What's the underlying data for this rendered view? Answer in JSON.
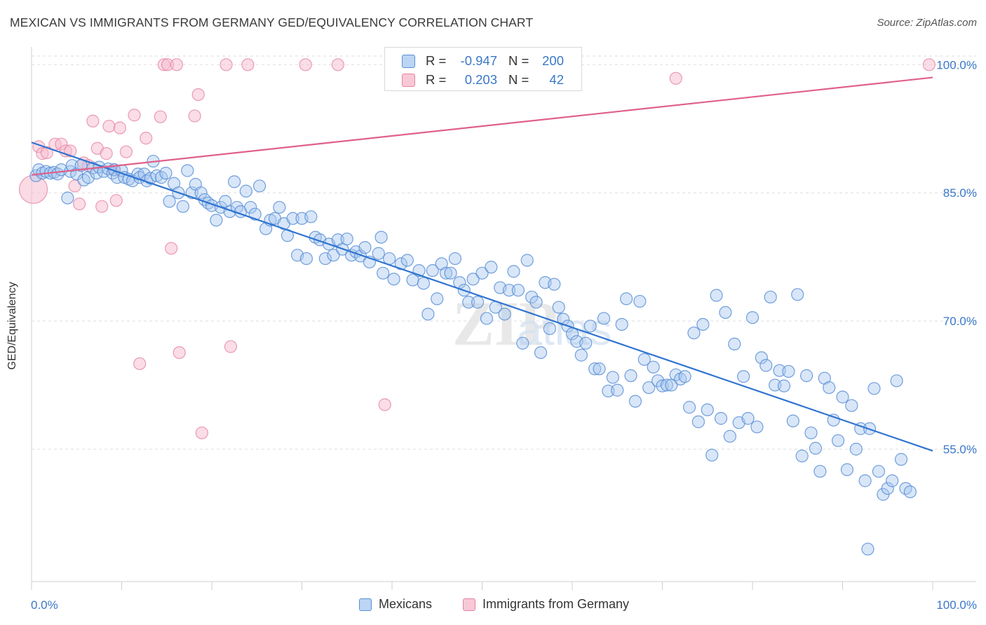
{
  "header": {
    "title": "MEXICAN VS IMMIGRANTS FROM GERMANY GED/EQUIVALENCY CORRELATION CHART",
    "source": "Source: ZipAtlas.com"
  },
  "legend_box": {
    "rows": [
      {
        "r_label": "R =",
        "r_value": "-0.947",
        "n_label": "N =",
        "n_value": "200"
      },
      {
        "r_label": "R =",
        "r_value": "0.203",
        "n_label": "N =",
        "n_value": "42"
      }
    ]
  },
  "bottom_legend": {
    "mexicans": "Mexicans",
    "germany": "Immigrants from Germany"
  },
  "colors": {
    "blue_fill": "#a9c8f0",
    "blue_stroke": "#5a8fd6",
    "blue_line": "#2f74d0",
    "pink_fill": "#f5bccd",
    "pink_stroke": "#e684a4",
    "pink_line": "#e0608a",
    "axis_text": "#3a78c9",
    "grid": "#dedede"
  },
  "chart_data": {
    "type": "scatter",
    "title": "MEXICAN VS IMMIGRANTS FROM GERMANY GED/EQUIVALENCY CORRELATION CHART",
    "xlabel": "",
    "ylabel": "GED/Equivalency",
    "xlim": [
      0,
      100
    ],
    "ylim": [
      39.5,
      101.5
    ],
    "x_tick_labels": [
      "0.0%",
      "100.0%"
    ],
    "y_ticks": [
      55,
      70,
      85,
      100
    ],
    "y_tick_labels": [
      "55.0%",
      "70.0%",
      "85.0%",
      "100.0%"
    ],
    "grid": true,
    "watermark": "ZIPatlas",
    "series": [
      {
        "name": "Mexicans",
        "trendline": [
          [
            0,
            90.9
          ],
          [
            100,
            54.8
          ]
        ],
        "points": [
          [
            0.5,
            87
          ],
          [
            0.8,
            87.7
          ],
          [
            1.2,
            87.3
          ],
          [
            1.6,
            87.5
          ],
          [
            2.1,
            87.3
          ],
          [
            2.5,
            87.4
          ],
          [
            2.9,
            87.2
          ],
          [
            3.3,
            87.7
          ],
          [
            4,
            84.4
          ],
          [
            4.3,
            87.5
          ],
          [
            4.5,
            88.2
          ],
          [
            5,
            87.2
          ],
          [
            5.5,
            88.2
          ],
          [
            5.8,
            86.5
          ],
          [
            6.3,
            86.8
          ],
          [
            6.8,
            87.9
          ],
          [
            7.2,
            87.3
          ],
          [
            7.5,
            88
          ],
          [
            8,
            87.5
          ],
          [
            8.5,
            87.8
          ],
          [
            9,
            87.3
          ],
          [
            9.2,
            87.7
          ],
          [
            9.5,
            86.8
          ],
          [
            10,
            87.6
          ],
          [
            10.3,
            86.8
          ],
          [
            10.8,
            86.6
          ],
          [
            11.2,
            86.4
          ],
          [
            11.8,
            87.2
          ],
          [
            12,
            86.8
          ],
          [
            12.5,
            87.2
          ],
          [
            12.8,
            86.4
          ],
          [
            13.2,
            86.7
          ],
          [
            13.5,
            88.7
          ],
          [
            13.9,
            87
          ],
          [
            14.4,
            86.8
          ],
          [
            14.9,
            87.3
          ],
          [
            15.3,
            84
          ],
          [
            15.8,
            86.1
          ],
          [
            16.3,
            85
          ],
          [
            16.8,
            83.4
          ],
          [
            17.3,
            87.6
          ],
          [
            17.8,
            85
          ],
          [
            18.2,
            86
          ],
          [
            18.8,
            85
          ],
          [
            19.2,
            84.2
          ],
          [
            19.6,
            83.8
          ],
          [
            20,
            83.5
          ],
          [
            20.5,
            81.8
          ],
          [
            21,
            83.3
          ],
          [
            21.5,
            84
          ],
          [
            22,
            82.8
          ],
          [
            22.5,
            86.3
          ],
          [
            22.8,
            83.3
          ],
          [
            23.2,
            82.8
          ],
          [
            23.8,
            85.2
          ],
          [
            24.3,
            83.3
          ],
          [
            24.8,
            82.5
          ],
          [
            25.3,
            85.8
          ],
          [
            26,
            80.8
          ],
          [
            26.5,
            81.8
          ],
          [
            27,
            82
          ],
          [
            27.5,
            83.3
          ],
          [
            28,
            81.4
          ],
          [
            28.4,
            80
          ],
          [
            29,
            82
          ],
          [
            29.5,
            77.7
          ],
          [
            30,
            82
          ],
          [
            30.5,
            77.3
          ],
          [
            31,
            82.2
          ],
          [
            31.5,
            79.8
          ],
          [
            32,
            79.5
          ],
          [
            32.6,
            77.3
          ],
          [
            33,
            79
          ],
          [
            33.5,
            77.7
          ],
          [
            34,
            79.5
          ],
          [
            34.5,
            78.4
          ],
          [
            35,
            79.6
          ],
          [
            35.5,
            77.7
          ],
          [
            36,
            78.1
          ],
          [
            36.5,
            77.6
          ],
          [
            37,
            78.6
          ],
          [
            37.5,
            76.9
          ],
          [
            38.5,
            77.9
          ],
          [
            38.8,
            79.8
          ],
          [
            39,
            75.6
          ],
          [
            39.7,
            77.3
          ],
          [
            40.2,
            74.9
          ],
          [
            41,
            76.7
          ],
          [
            41.7,
            77.1
          ],
          [
            42.3,
            74.8
          ],
          [
            43,
            75.9
          ],
          [
            43.5,
            74.4
          ],
          [
            44,
            70.8
          ],
          [
            44.5,
            75.9
          ],
          [
            45,
            72.6
          ],
          [
            45.5,
            76.7
          ],
          [
            46,
            75.6
          ],
          [
            46.5,
            75.6
          ],
          [
            47,
            77.3
          ],
          [
            47.5,
            74.5
          ],
          [
            48,
            73.6
          ],
          [
            48.5,
            72.2
          ],
          [
            49,
            74.9
          ],
          [
            49.5,
            72.2
          ],
          [
            50,
            75.6
          ],
          [
            50.5,
            70.3
          ],
          [
            51,
            76.3
          ],
          [
            51.5,
            71.6
          ],
          [
            52,
            73.9
          ],
          [
            52.5,
            70.8
          ],
          [
            53,
            73.6
          ],
          [
            53.5,
            75.8
          ],
          [
            54,
            73.6
          ],
          [
            54.5,
            67.4
          ],
          [
            55,
            77.1
          ],
          [
            55.5,
            72.8
          ],
          [
            56,
            72.2
          ],
          [
            56.5,
            66.3
          ],
          [
            57,
            74.5
          ],
          [
            57.5,
            69.1
          ],
          [
            58,
            74.3
          ],
          [
            58.5,
            71.6
          ],
          [
            59,
            70.2
          ],
          [
            59.5,
            69.4
          ],
          [
            60,
            68.5
          ],
          [
            60.5,
            67.6
          ],
          [
            61,
            66
          ],
          [
            61.5,
            67.4
          ],
          [
            62,
            69.4
          ],
          [
            62.5,
            64.4
          ],
          [
            63,
            64.4
          ],
          [
            63.5,
            70.3
          ],
          [
            64,
            61.8
          ],
          [
            64.5,
            63.4
          ],
          [
            65,
            61.9
          ],
          [
            65.5,
            69.6
          ],
          [
            66,
            72.6
          ],
          [
            66.5,
            63.6
          ],
          [
            67,
            60.6
          ],
          [
            67.5,
            72.3
          ],
          [
            68,
            65.5
          ],
          [
            68.5,
            62.2
          ],
          [
            69,
            64.6
          ],
          [
            69.5,
            63
          ],
          [
            70,
            62.4
          ],
          [
            70.5,
            62.5
          ],
          [
            71,
            62.5
          ],
          [
            71.5,
            63.7
          ],
          [
            72,
            63.2
          ],
          [
            72.5,
            63.5
          ],
          [
            73,
            59.9
          ],
          [
            73.5,
            68.6
          ],
          [
            74,
            58.2
          ],
          [
            74.5,
            69.6
          ],
          [
            75,
            59.6
          ],
          [
            75.5,
            54.3
          ],
          [
            76,
            73
          ],
          [
            76.5,
            58.6
          ],
          [
            77,
            71
          ],
          [
            77.5,
            56.5
          ],
          [
            78,
            67.3
          ],
          [
            78.5,
            58.1
          ],
          [
            79,
            63.5
          ],
          [
            79.5,
            58.6
          ],
          [
            80,
            70.4
          ],
          [
            80.5,
            57.6
          ],
          [
            81,
            65.7
          ],
          [
            81.5,
            64.8
          ],
          [
            82,
            72.8
          ],
          [
            82.5,
            62.5
          ],
          [
            83,
            64.2
          ],
          [
            83.5,
            62.4
          ],
          [
            84,
            64.1
          ],
          [
            84.5,
            58.3
          ],
          [
            85,
            73.1
          ],
          [
            85.5,
            54.2
          ],
          [
            86,
            63.6
          ],
          [
            86.5,
            56.9
          ],
          [
            87,
            55.1
          ],
          [
            87.5,
            52.4
          ],
          [
            88,
            63.3
          ],
          [
            88.5,
            62.2
          ],
          [
            89,
            58.4
          ],
          [
            89.5,
            56
          ],
          [
            90,
            61.1
          ],
          [
            90.5,
            52.6
          ],
          [
            91,
            60.1
          ],
          [
            91.5,
            55.0
          ],
          [
            92,
            57.4
          ],
          [
            92.5,
            51.3
          ],
          [
            93,
            57.4
          ],
          [
            93.5,
            62.1
          ],
          [
            94,
            52.4
          ],
          [
            94.5,
            49.7
          ],
          [
            95,
            50.4
          ],
          [
            95.5,
            51.3
          ],
          [
            96,
            63
          ],
          [
            96.5,
            53.8
          ],
          [
            97,
            50.4
          ],
          [
            97.5,
            50.0
          ],
          [
            92.8,
            43.3
          ]
        ]
      },
      {
        "name": "Immigrants from Germany",
        "trendline": [
          [
            0,
            87.1
          ],
          [
            100,
            98.5
          ]
        ],
        "points": [
          [
            0.8,
            90.4
          ],
          [
            1.2,
            89.6
          ],
          [
            1.7,
            89.7
          ],
          [
            2.6,
            90.7
          ],
          [
            3.3,
            90.7
          ],
          [
            3.8,
            89.9
          ],
          [
            4.3,
            89.9
          ],
          [
            4.8,
            85.8
          ],
          [
            5.3,
            83.7
          ],
          [
            5.8,
            88.5
          ],
          [
            6.3,
            88.2
          ],
          [
            6.8,
            93.4
          ],
          [
            7.3,
            90.2
          ],
          [
            7.8,
            83.4
          ],
          [
            8.3,
            89.6
          ],
          [
            8.6,
            92.8
          ],
          [
            9.1,
            87.7
          ],
          [
            9.4,
            84.1
          ],
          [
            9.8,
            92.6
          ],
          [
            10.5,
            89.8
          ],
          [
            11.4,
            94.1
          ],
          [
            12,
            65.0
          ],
          [
            12.7,
            91.4
          ],
          [
            14.3,
            93.9
          ],
          [
            14.7,
            100.0
          ],
          [
            15.1,
            100.0
          ],
          [
            15.5,
            78.5
          ],
          [
            16.1,
            100.0
          ],
          [
            16.4,
            66.3
          ],
          [
            18.1,
            94.0
          ],
          [
            18.5,
            96.5
          ],
          [
            18.9,
            56.9
          ],
          [
            21.6,
            100.0
          ],
          [
            22.1,
            67.0
          ],
          [
            24.0,
            100.0
          ],
          [
            30.4,
            100.0
          ],
          [
            34.0,
            100.0
          ],
          [
            39.2,
            60.2
          ],
          [
            47.9,
            100.0
          ],
          [
            71.5,
            98.4
          ],
          [
            99.6,
            100.0
          ],
          [
            0.2,
            85.4
          ]
        ]
      }
    ]
  }
}
